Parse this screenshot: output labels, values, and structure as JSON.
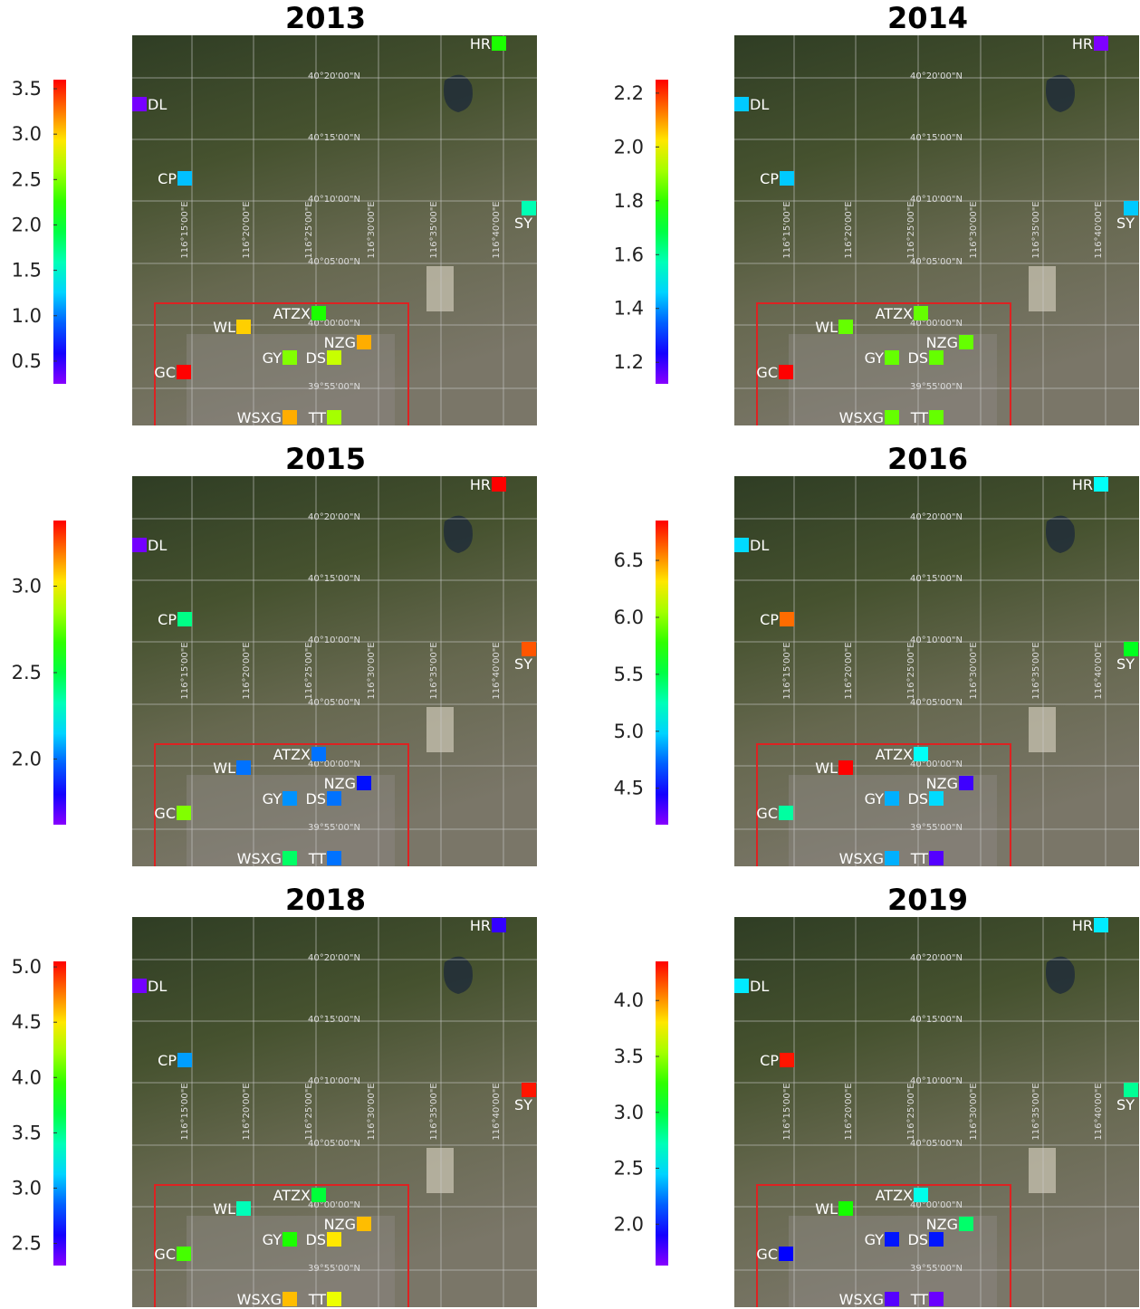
{
  "stations": [
    "HR",
    "DL",
    "CP",
    "SY",
    "ATZX",
    "WL",
    "NZG",
    "GY",
    "DS",
    "GC",
    "WSXG",
    "TT"
  ],
  "grid_labels": {
    "lat": [
      "40°20'00\"N",
      "40°15'00\"N",
      "40°10'00\"N",
      "40°05'00\"N",
      "40°00'00\"N",
      "39°55'00\"N"
    ],
    "lon": [
      "116°15'00\"E",
      "116°20'00\"E",
      "116°25'00\"E",
      "116°30'00\"E",
      "116°35'00\"E",
      "116°40'00\"E"
    ]
  },
  "panels": [
    {
      "title": "2013",
      "colorbar": {
        "lim": [
          0.25,
          3.6
        ],
        "ticks": [
          0.5,
          {
            "value": 1,
            "label": "1.0"
          },
          1.5,
          {
            "value": 2,
            "label": "2.0"
          },
          2.5,
          {
            "value": 3,
            "label": "3.0"
          },
          3.5
        ]
      },
      "values": [
        2.2,
        0.3,
        1.2,
        1.6,
        2.2,
        3.0,
        3.1,
        2.5,
        2.7,
        3.6,
        3.1,
        2.6
      ]
    },
    {
      "title": "2014",
      "colorbar": {
        "lim": [
          1.12,
          2.25
        ],
        "ticks": [
          1.2,
          1.4,
          1.6,
          1.8,
          {
            "value": 2,
            "label": "2.0"
          },
          2.2
        ]
      },
      "values": [
        1.13,
        1.45,
        1.45,
        1.45,
        1.85,
        1.85,
        1.85,
        1.85,
        1.85,
        2.25,
        1.85,
        1.85
      ]
    },
    {
      "title": "2015",
      "colorbar": {
        "lim": [
          1.62,
          3.38
        ],
        "ticks": [
          {
            "value": 2,
            "label": "2.0"
          },
          2.5,
          {
            "value": 3,
            "label": "3.0"
          }
        ]
      },
      "values": [
        3.38,
        1.65,
        2.4,
        3.25,
        2.0,
        2.0,
        1.85,
        2.05,
        2.0,
        2.8,
        2.45,
        2.0
      ]
    },
    {
      "title": "2016",
      "colorbar": {
        "lim": [
          4.18,
          6.85
        ],
        "ticks": [
          4.5,
          {
            "value": 5,
            "label": "5.0"
          },
          5.5,
          {
            "value": 6,
            "label": "6.0"
          },
          6.5
        ]
      },
      "values": [
        5.1,
        5.0,
        6.6,
        5.6,
        5.1,
        6.85,
        4.35,
        4.9,
        5.0,
        5.3,
        4.9,
        4.3
      ]
    },
    {
      "title": "2018",
      "colorbar": {
        "lim": [
          2.3,
          5.05
        ],
        "ticks": [
          2.5,
          {
            "value": 3,
            "label": "3.0"
          },
          3.5,
          {
            "value": 4,
            "label": "4.0"
          },
          4.5,
          {
            "value": 5,
            "label": "5.0"
          }
        ]
      },
      "values": [
        2.5,
        2.35,
        3.0,
        5.0,
        3.7,
        3.4,
        4.6,
        3.9,
        4.5,
        4.0,
        4.6,
        4.4
      ]
    },
    {
      "title": "2019",
      "colorbar": {
        "lim": [
          1.63,
          4.35
        ],
        "ticks": [
          {
            "value": 2,
            "label": "2.0"
          },
          2.5,
          {
            "value": 3,
            "label": "3.0"
          },
          3.5,
          {
            "value": 4,
            "label": "4.0"
          }
        ]
      },
      "values": [
        2.5,
        2.5,
        4.3,
        2.8,
        2.6,
        3.2,
        2.9,
        2.0,
        2.0,
        1.95,
        1.75,
        1.7
      ]
    }
  ]
}
